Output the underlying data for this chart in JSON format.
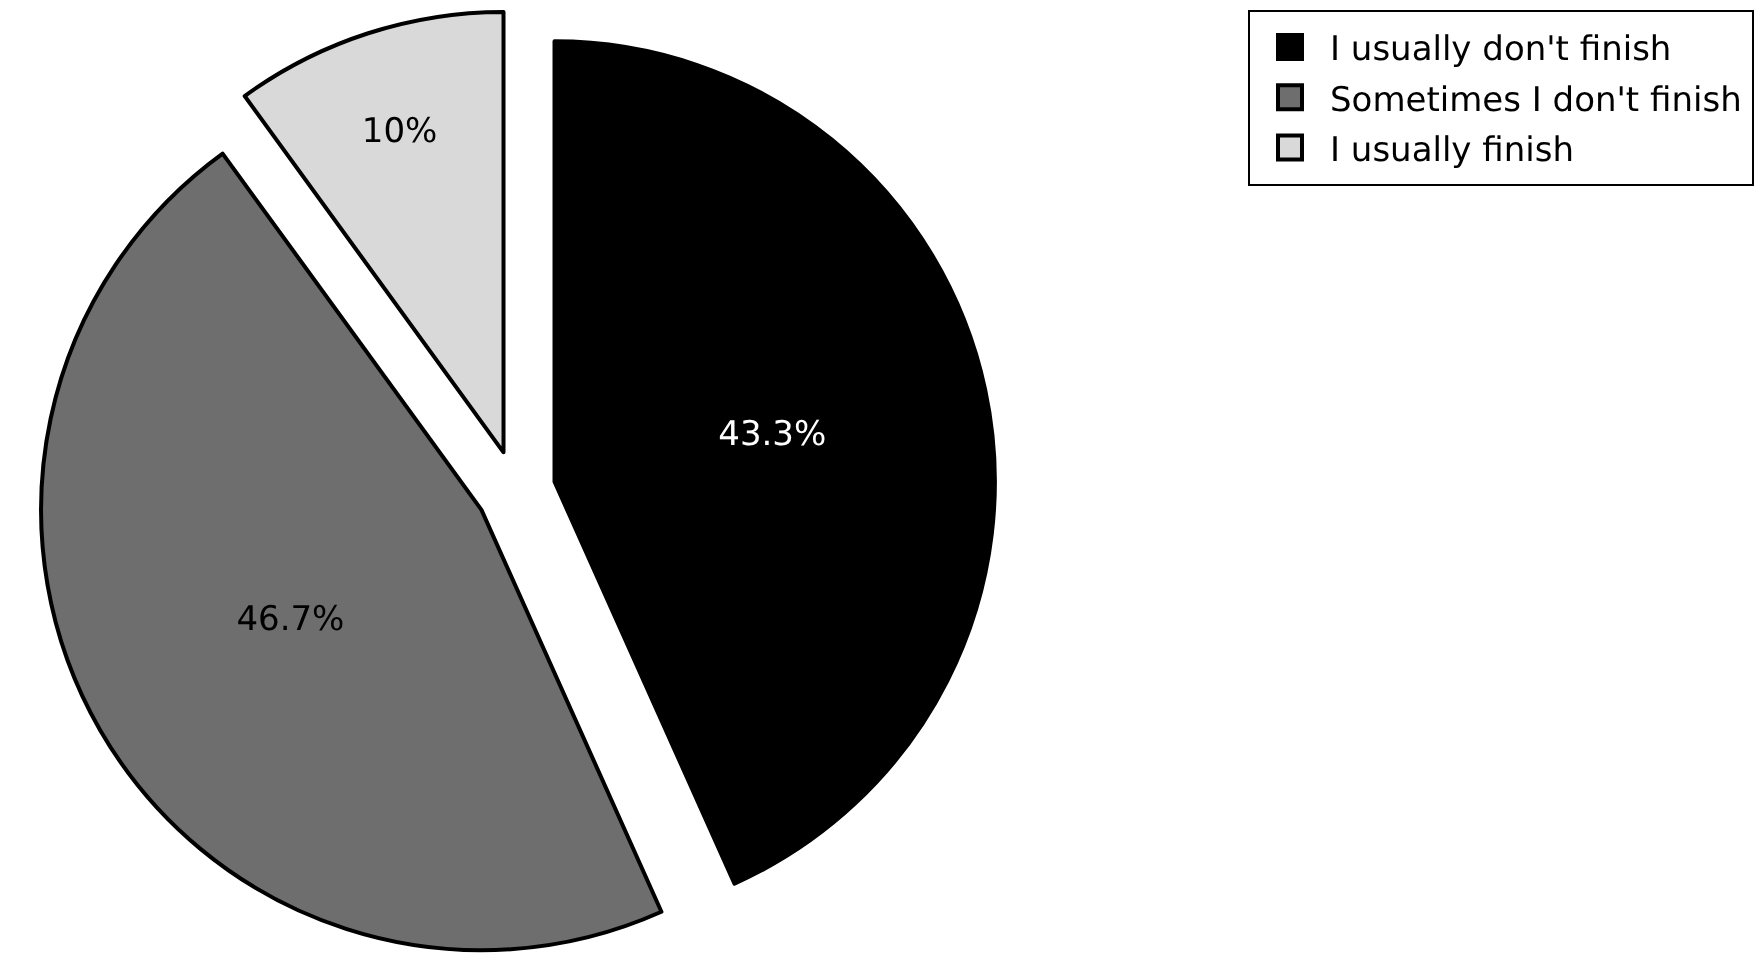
{
  "chart_data": {
    "type": "pie",
    "categories": [
      "I usually don't finish",
      "Sometimes I don't finish",
      "I usually finish"
    ],
    "values": [
      43.3,
      46.7,
      10
    ],
    "colors": [
      "#000000",
      "#6e6e6e",
      "#d9d9d9"
    ],
    "value_labels": [
      "43.3%",
      "46.7%",
      "10%"
    ],
    "legend": "top right"
  }
}
